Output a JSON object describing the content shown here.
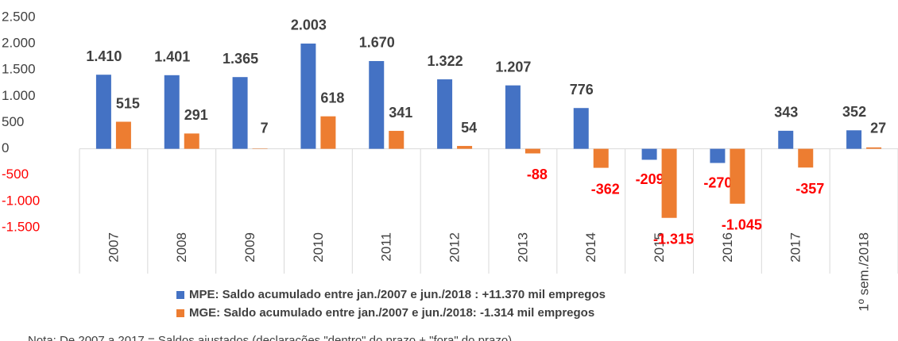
{
  "chart_data": {
    "type": "bar",
    "categories": [
      "2007",
      "2008",
      "2009",
      "2010",
      "2011",
      "2012",
      "2013",
      "2014",
      "2015",
      "2016",
      "2017",
      "1º sem./2018"
    ],
    "series": [
      {
        "name": "MPE: Saldo acumulado entre jan./2007 e jun./2018 : +11.370 mil empregos",
        "color": "#4472c4",
        "values": [
          1410,
          1401,
          1365,
          2003,
          1670,
          1322,
          1207,
          776,
          -209,
          -270,
          343,
          352
        ],
        "value_labels": [
          "1.410",
          "1.401",
          "1.365",
          "2.003",
          "1.670",
          "1.322",
          "1.207",
          "776",
          "-209",
          "-270",
          "343",
          "352"
        ]
      },
      {
        "name": "MGE: Saldo acumulado entre jan./2007 e jun./2018: -1.314 mil empregos",
        "color": "#ed7d31",
        "values": [
          515,
          291,
          7,
          618,
          341,
          54,
          -88,
          -362,
          -1315,
          -1045,
          -357,
          27
        ],
        "value_labels": [
          "515",
          "291",
          "7",
          "618",
          "341",
          "54",
          "-88",
          "-362",
          "-1.315",
          "-1.045",
          "-357",
          "27"
        ]
      }
    ],
    "ylim": [
      -1500,
      2500
    ],
    "yticks": [
      {
        "value": -1500,
        "label": "-1.500"
      },
      {
        "value": -1000,
        "label": "-1.000"
      },
      -500,
      0,
      500,
      {
        "value": 1000,
        "label": "1.000"
      },
      {
        "value": 1500,
        "label": "1.500"
      },
      {
        "value": 2000,
        "label": "2.000"
      },
      {
        "value": 2500,
        "label": "2.500"
      }
    ],
    "negative_color": "#ff0000",
    "note": "Nota: De 2007 a 2017 = Saldos ajustados (declarações \"dentro\" do prazo + \"fora\" do prazo)"
  }
}
